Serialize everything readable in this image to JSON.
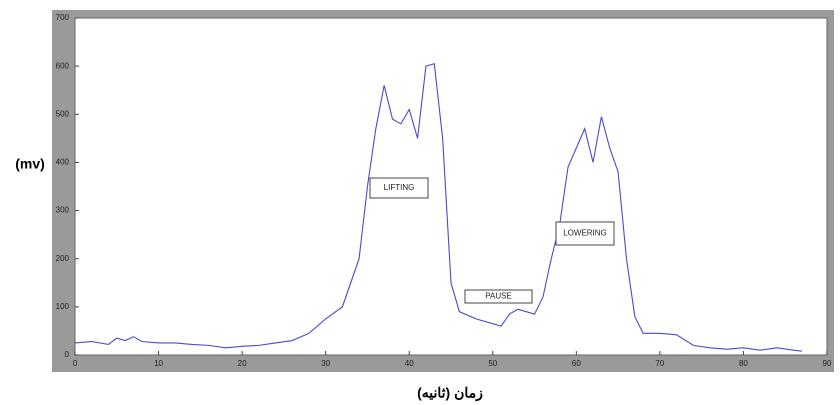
{
  "chart_data": {
    "type": "line",
    "y_label": "(mv)",
    "x_label": "زمان (ثانیه)",
    "x": [
      0,
      2,
      4,
      5,
      6,
      7,
      8,
      10,
      12,
      14,
      16,
      18,
      20,
      22,
      24,
      26,
      28,
      30,
      32,
      34,
      35,
      36,
      37,
      38,
      39,
      40,
      41,
      42,
      43,
      44,
      45,
      46,
      48,
      50,
      51,
      52,
      53,
      54,
      55,
      56,
      57,
      58,
      59,
      60,
      61,
      62,
      63,
      64,
      65,
      66,
      67,
      68,
      70,
      72,
      74,
      76,
      78,
      80,
      82,
      84,
      86,
      87
    ],
    "series": [
      {
        "color": "#4a4ad0",
        "values": [
          25,
          28,
          22,
          35,
          30,
          38,
          28,
          25,
          25,
          22,
          20,
          15,
          18,
          20,
          25,
          30,
          45,
          75,
          100,
          200,
          350,
          470,
          560,
          490,
          480,
          510,
          450,
          600,
          605,
          450,
          150,
          90,
          75,
          65,
          60,
          85,
          95,
          90,
          85,
          120,
          200,
          270,
          390,
          430,
          470,
          400,
          495,
          430,
          380,
          200,
          80,
          45,
          45,
          42,
          20,
          15,
          12,
          15,
          10,
          15,
          10,
          8
        ]
      }
    ],
    "annotations": [
      "LIFTING",
      "PAUSE",
      "LOWERING"
    ],
    "xlim": [
      0,
      90
    ],
    "xticks": [
      0,
      10,
      20,
      30,
      40,
      50,
      60,
      70,
      80,
      90
    ],
    "ylim": [
      0,
      700
    ],
    "yticks": [
      0,
      100,
      200,
      300,
      400,
      500,
      600,
      700
    ]
  }
}
